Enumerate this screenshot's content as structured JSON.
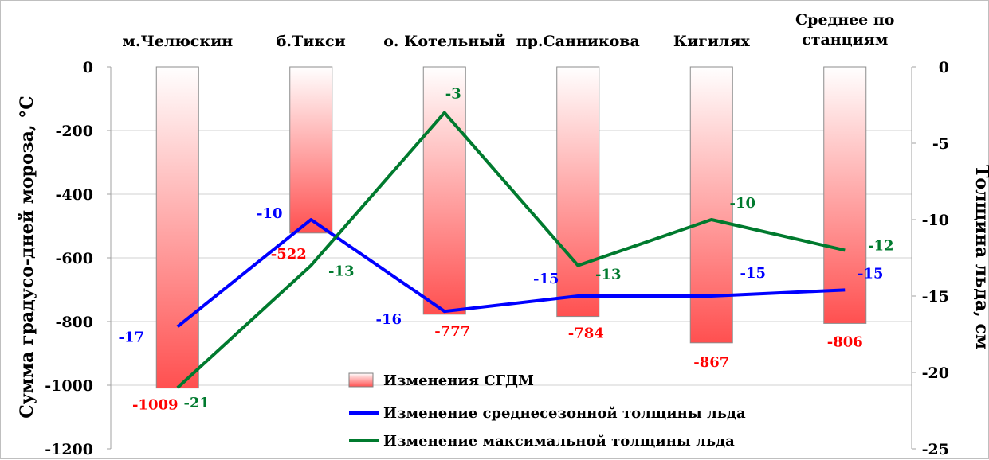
{
  "chart_data": {
    "type": "bar",
    "categories": [
      "м.Челюскин",
      "б.Тикси",
      "о. Котельный",
      "пр.Санникова",
      "Кигилях",
      [
        "Среднее по",
        "станциям"
      ]
    ],
    "y_left": {
      "label": "Сумма градусо-дней мороза, °С",
      "lim": [
        -1200,
        0
      ],
      "ticks": [
        0,
        -200,
        -400,
        -600,
        -800,
        -1000,
        -1200
      ]
    },
    "y_right": {
      "label": "Толщина льда, см",
      "lim": [
        -25,
        0
      ],
      "ticks": [
        0,
        -5,
        -10,
        -15,
        -20,
        -25
      ]
    },
    "series": [
      {
        "name": "Изменения СГДМ",
        "kind": "bar",
        "axis": "left",
        "color": "#ff0000",
        "values": [
          -1009,
          -522,
          -777,
          -784,
          -867,
          -806
        ],
        "labels": [
          "-1009",
          "-522",
          "-777",
          "-784",
          "-867",
          "-806"
        ]
      },
      {
        "name": "Изменение среднесезонной толщины льда",
        "kind": "line",
        "axis": "right",
        "color": "#0000ff",
        "values": [
          -17,
          -10,
          -16,
          -15,
          -15,
          -14.6
        ],
        "labels": [
          "-17",
          "-10",
          "-16",
          "-15",
          "-15",
          "-15"
        ]
      },
      {
        "name": "Изменение максимальной толщины льда",
        "kind": "line",
        "axis": "right",
        "color": "#007a2e",
        "values": [
          -21,
          -13,
          -3,
          -13,
          -10,
          -12
        ],
        "labels": [
          "-21",
          "-13",
          "-3",
          "-13",
          "-10",
          "-12"
        ]
      }
    ],
    "grid": true,
    "legend_position": "bottom-center"
  }
}
